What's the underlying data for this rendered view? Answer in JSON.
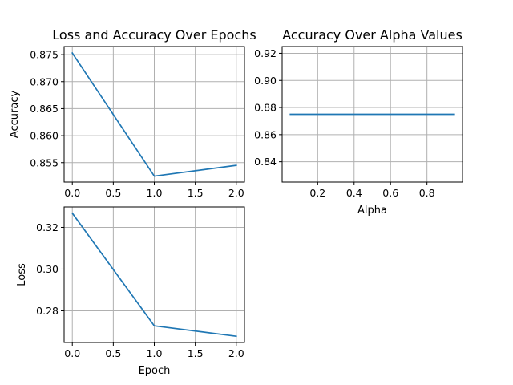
{
  "chart_data": [
    {
      "type": "line",
      "title": "Loss and Accuracy Over Epochs",
      "xlabel": "",
      "ylabel": "Accuracy",
      "x": [
        0,
        1,
        2
      ],
      "series": [
        {
          "values": [
            0.8753,
            0.8525,
            0.8545
          ],
          "color": "#1f77b4"
        }
      ],
      "xlim": [
        -0.1,
        2.1
      ],
      "ylim": [
        0.8514,
        0.8765
      ],
      "xticks": [
        0.0,
        0.5,
        1.0,
        1.5,
        2.0
      ],
      "xtick_labels": [
        "0.0",
        "0.5",
        "1.0",
        "1.5",
        "2.0"
      ],
      "yticks": [
        0.855,
        0.86,
        0.865,
        0.87,
        0.875
      ],
      "ytick_labels": [
        "0.855",
        "0.860",
        "0.865",
        "0.870",
        "0.875"
      ],
      "grid": true
    },
    {
      "type": "line",
      "title": "Accuracy Over Alpha Values",
      "xlabel": "Alpha",
      "ylabel": "",
      "x": [
        0.05,
        0.95
      ],
      "series": [
        {
          "values": [
            0.875,
            0.875
          ],
          "color": "#1f77b4"
        }
      ],
      "xlim": [
        0.005,
        0.995
      ],
      "ylim": [
        0.825,
        0.925
      ],
      "xticks": [
        0.2,
        0.4,
        0.6,
        0.8
      ],
      "xtick_labels": [
        "0.2",
        "0.4",
        "0.6",
        "0.8"
      ],
      "yticks": [
        0.84,
        0.86,
        0.88,
        0.9,
        0.92
      ],
      "ytick_labels": [
        "0.84",
        "0.86",
        "0.88",
        "0.90",
        "0.92"
      ],
      "grid": true
    },
    {
      "type": "line",
      "title": "",
      "xlabel": "Epoch",
      "ylabel": "Loss",
      "x": [
        0,
        1,
        2
      ],
      "series": [
        {
          "values": [
            0.3268,
            0.2728,
            0.2678
          ],
          "color": "#1f77b4"
        }
      ],
      "xlim": [
        -0.1,
        2.1
      ],
      "ylim": [
        0.2648,
        0.3298
      ],
      "xticks": [
        0.0,
        0.5,
        1.0,
        1.5,
        2.0
      ],
      "xtick_labels": [
        "0.0",
        "0.5",
        "1.0",
        "1.5",
        "2.0"
      ],
      "yticks": [
        0.28,
        0.3,
        0.32
      ],
      "ytick_labels": [
        "0.28",
        "0.30",
        "0.32"
      ],
      "grid": true
    }
  ]
}
